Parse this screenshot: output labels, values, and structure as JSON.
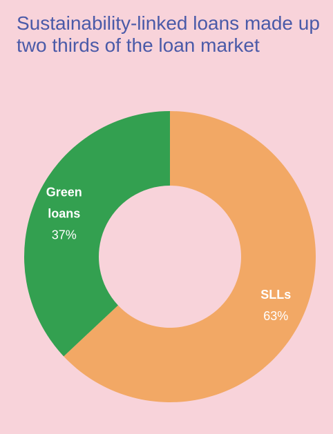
{
  "title": "Sustainability-linked loans made up two thirds of the loan market",
  "chart_data": {
    "type": "pie",
    "donut": true,
    "slices": [
      {
        "label_lines": [
          "SLLs"
        ],
        "value": 63,
        "value_label": "63%",
        "color": "#f2a865"
      },
      {
        "label_lines": [
          "Green",
          "loans"
        ],
        "value": 37,
        "value_label": "37%",
        "color": "#33a050"
      }
    ]
  }
}
